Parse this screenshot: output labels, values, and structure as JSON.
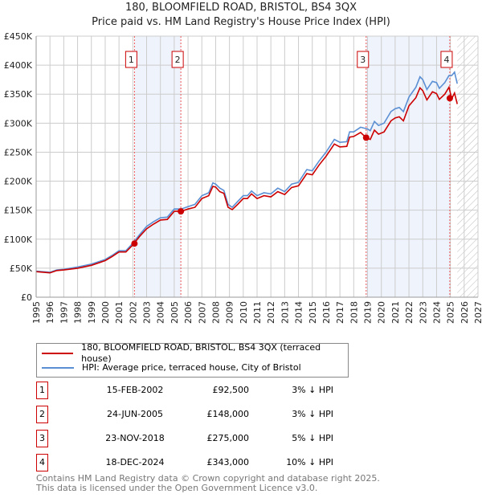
{
  "title": "180, BLOOMFIELD ROAD, BRISTOL, BS4 3QX",
  "subtitle": "Price paid vs. HM Land Registry's House Price Index (HPI)",
  "chart_data": {
    "type": "line",
    "xlim": [
      1995,
      2027
    ],
    "ylim": [
      0,
      450000
    ],
    "x_ticks": [
      "1995",
      "1996",
      "1997",
      "1998",
      "1999",
      "2000",
      "2001",
      "2002",
      "2003",
      "2004",
      "2005",
      "2006",
      "2007",
      "2008",
      "2009",
      "2010",
      "2011",
      "2012",
      "2013",
      "2014",
      "2015",
      "2016",
      "2017",
      "2018",
      "2019",
      "2020",
      "2021",
      "2022",
      "2023",
      "2024",
      "2025",
      "2026",
      "2027"
    ],
    "y_ticks": [
      "£0",
      "£50K",
      "£100K",
      "£150K",
      "£200K",
      "£250K",
      "£300K",
      "£350K",
      "£400K",
      "£450K"
    ],
    "grid": true,
    "shaded_periods": [
      [
        2002.12,
        2005.48
      ],
      [
        2018.9,
        2024.96
      ]
    ],
    "forecast_hatch_from": 2025.5,
    "series": [
      {
        "name": "HPI: Average price, terraced house, City of Bristol",
        "color": "#5b8fd4",
        "x": [
          1995,
          1996,
          1996.5,
          1997,
          1998,
          1999,
          2000,
          2000.5,
          2001,
          2001.5,
          2002,
          2002.5,
          2003,
          2003.5,
          2004,
          2004.5,
          2005,
          2005.5,
          2006,
          2006.5,
          2007,
          2007.5,
          2007.8,
          2008,
          2008.3,
          2008.6,
          2008.9,
          2009.2,
          2009.6,
          2010,
          2010.3,
          2010.6,
          2011,
          2011.5,
          2012,
          2012.5,
          2013,
          2013.5,
          2014,
          2014.6,
          2015,
          2015.5,
          2016,
          2016.6,
          2017,
          2017.5,
          2017.7,
          2018,
          2018.5,
          2019,
          2019.2,
          2019.5,
          2019.8,
          2020.2,
          2020.7,
          2021,
          2021.3,
          2021.6,
          2022,
          2022.5,
          2022.8,
          2023,
          2023.3,
          2023.7,
          2024,
          2024.2,
          2024.6,
          2024.9,
          2025.1,
          2025.3,
          2025.5
        ],
        "y": [
          45,
          43,
          47,
          48,
          52,
          57,
          65,
          72,
          80,
          80,
          93,
          108,
          122,
          130,
          137,
          138,
          152,
          152,
          156,
          160,
          175,
          180,
          197,
          195,
          188,
          184,
          160,
          155,
          165,
          175,
          175,
          183,
          175,
          180,
          178,
          188,
          182,
          195,
          198,
          220,
          218,
          235,
          250,
          272,
          267,
          268,
          285,
          285,
          293,
          290,
          287,
          303,
          296,
          300,
          320,
          325,
          327,
          320,
          345,
          362,
          380,
          375,
          358,
          372,
          370,
          360,
          370,
          382,
          382,
          388,
          368
        ]
      },
      {
        "name": "180, BLOOMFIELD ROAD, BRISTOL, BS4 3QX (terraced house)",
        "color": "#cc0000",
        "x": [
          1995,
          1996,
          1996.5,
          1997,
          1998,
          1999,
          2000,
          2000.5,
          2001,
          2001.5,
          2002,
          2002.5,
          2003,
          2003.5,
          2004,
          2004.5,
          2005,
          2005.5,
          2006,
          2006.5,
          2007,
          2007.5,
          2007.8,
          2008,
          2008.3,
          2008.6,
          2008.9,
          2009.2,
          2009.6,
          2010,
          2010.3,
          2010.6,
          2011,
          2011.5,
          2012,
          2012.5,
          2013,
          2013.5,
          2014,
          2014.6,
          2015,
          2015.5,
          2016,
          2016.6,
          2017,
          2017.5,
          2017.7,
          2018,
          2018.5,
          2018.9,
          2019.2,
          2019.5,
          2019.8,
          2020.2,
          2020.7,
          2021,
          2021.3,
          2021.6,
          2022,
          2022.5,
          2022.8,
          2023,
          2023.3,
          2023.7,
          2024,
          2024.2,
          2024.6,
          2024.9,
          2025.1,
          2025.3,
          2025.5
        ],
        "y": [
          44,
          42,
          46,
          47,
          50,
          55,
          63,
          70,
          78,
          78,
          90,
          105,
          118,
          126,
          133,
          134,
          148,
          148,
          152,
          155,
          170,
          175,
          191,
          190,
          182,
          179,
          155,
          151,
          160,
          170,
          170,
          178,
          170,
          175,
          173,
          182,
          177,
          189,
          192,
          213,
          211,
          228,
          243,
          264,
          259,
          260,
          276,
          277,
          284,
          275,
          272,
          288,
          281,
          285,
          304,
          309,
          311,
          304,
          330,
          344,
          361,
          356,
          340,
          354,
          351,
          341,
          350,
          362,
          342,
          352,
          333
        ]
      }
    ],
    "sales": [
      {
        "label": "1",
        "x": 2002.12,
        "y": 92500
      },
      {
        "label": "2",
        "x": 2005.48,
        "y": 148000
      },
      {
        "label": "3",
        "x": 2018.9,
        "y": 275000
      },
      {
        "label": "4",
        "x": 2024.96,
        "y": 343000
      }
    ]
  },
  "legend": {
    "red": "180, BLOOMFIELD ROAD, BRISTOL, BS4 3QX (terraced house)",
    "blue": "HPI: Average price, terraced house, City of Bristol"
  },
  "transactions": [
    {
      "num": "1",
      "date": "15-FEB-2002",
      "price": "£92,500",
      "hpi": "3% ↓ HPI"
    },
    {
      "num": "2",
      "date": "24-JUN-2005",
      "price": "£148,000",
      "hpi": "3% ↓ HPI"
    },
    {
      "num": "3",
      "date": "23-NOV-2018",
      "price": "£275,000",
      "hpi": "5% ↓ HPI"
    },
    {
      "num": "4",
      "date": "18-DEC-2024",
      "price": "£343,000",
      "hpi": "10% ↓ HPI"
    }
  ],
  "footer": {
    "line1": "Contains HM Land Registry data © Crown copyright and database right 2025.",
    "line2": "This data is licensed under the Open Government Licence v3.0."
  }
}
